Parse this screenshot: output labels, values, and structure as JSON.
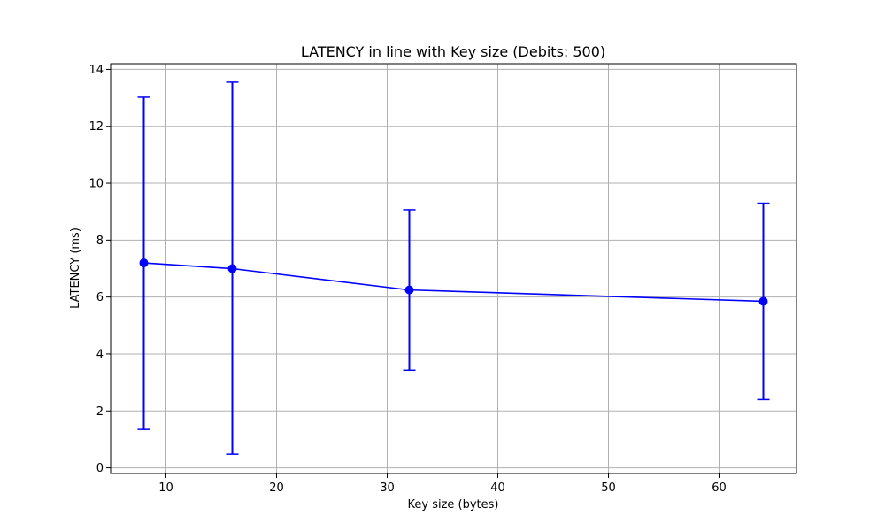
{
  "chart_data": {
    "type": "line",
    "title": "LATENCY in line with Key size (Debits: 500)",
    "xlabel": "Key size (bytes)",
    "ylabel": "LATENCY (ms)",
    "xlim": [
      5,
      67
    ],
    "ylim": [
      -0.2,
      14.2
    ],
    "xticks": [
      10,
      20,
      30,
      40,
      50,
      60
    ],
    "yticks": [
      0,
      2,
      4,
      6,
      8,
      10,
      12,
      14
    ],
    "grid": true,
    "series": [
      {
        "color": "#0000ff",
        "points": [
          {
            "x": 8,
            "y": 7.2,
            "err_low": 1.35,
            "err_high": 13.02
          },
          {
            "x": 16,
            "y": 7.0,
            "err_low": 0.48,
            "err_high": 13.55
          },
          {
            "x": 32,
            "y": 6.25,
            "err_low": 3.43,
            "err_high": 9.07
          },
          {
            "x": 64,
            "y": 5.85,
            "err_low": 2.4,
            "err_high": 9.3
          }
        ]
      }
    ]
  }
}
